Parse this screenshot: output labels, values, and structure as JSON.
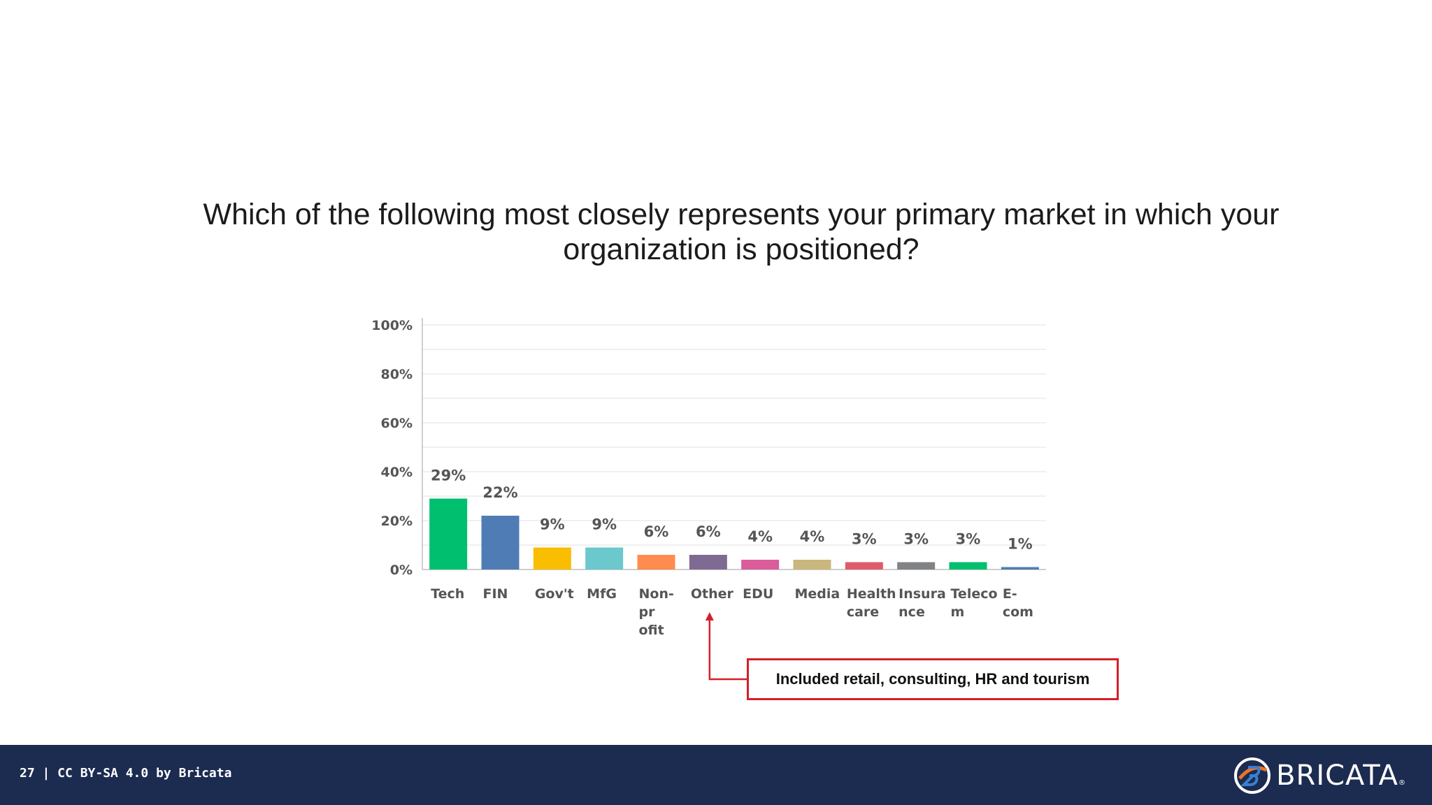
{
  "slide": {
    "title_line1": "Which of the following most closely represents your primary market in which your",
    "title_line2": "organization is positioned?"
  },
  "chart_data": {
    "type": "bar",
    "categories": [
      "Tech",
      "FIN",
      "Gov't",
      "MfG",
      "Non-profit",
      "Other",
      "EDU",
      "Media",
      "Health care",
      "Insurance",
      "Telecom",
      "E-com"
    ],
    "category_label_lines": [
      [
        "Tech"
      ],
      [
        "FIN"
      ],
      [
        "Gov't"
      ],
      [
        "MfG"
      ],
      [
        "Non-",
        "pr",
        "ofit"
      ],
      [
        "Other"
      ],
      [
        "EDU"
      ],
      [
        "Media"
      ],
      [
        "Health",
        "care"
      ],
      [
        "Insura",
        "nce"
      ],
      [
        "Teleco",
        "m"
      ],
      [
        "E-",
        "com"
      ]
    ],
    "values": [
      29,
      22,
      9,
      9,
      6,
      6,
      4,
      4,
      3,
      3,
      3,
      1
    ],
    "value_labels": [
      "29%",
      "22%",
      "9%",
      "9%",
      "6%",
      "6%",
      "4%",
      "4%",
      "3%",
      "3%",
      "3%",
      "1%"
    ],
    "colors": [
      "#00bf6f",
      "#507cb6",
      "#f9be00",
      "#6bc8cd",
      "#ff8b4f",
      "#7f6a93",
      "#da5c9a",
      "#c9b77d",
      "#e05a6a",
      "#808285",
      "#00bf6f",
      "#507cb6"
    ],
    "ylim": [
      0,
      100
    ],
    "yticks": [
      0,
      20,
      40,
      60,
      80,
      100
    ],
    "ytick_labels": [
      "0%",
      "20%",
      "40%",
      "60%",
      "80%",
      "100%"
    ],
    "grid": true
  },
  "callout": {
    "text": "Included retail, consulting, HR and tourism",
    "target_category": "Other",
    "color": "#d3202b"
  },
  "footer": {
    "text": "27 | CC BY-SA 4.0 by Bricata",
    "logo_text": "BRICATA",
    "logo_icon": "bricata-logo-icon",
    "background": "#1c2b50"
  }
}
